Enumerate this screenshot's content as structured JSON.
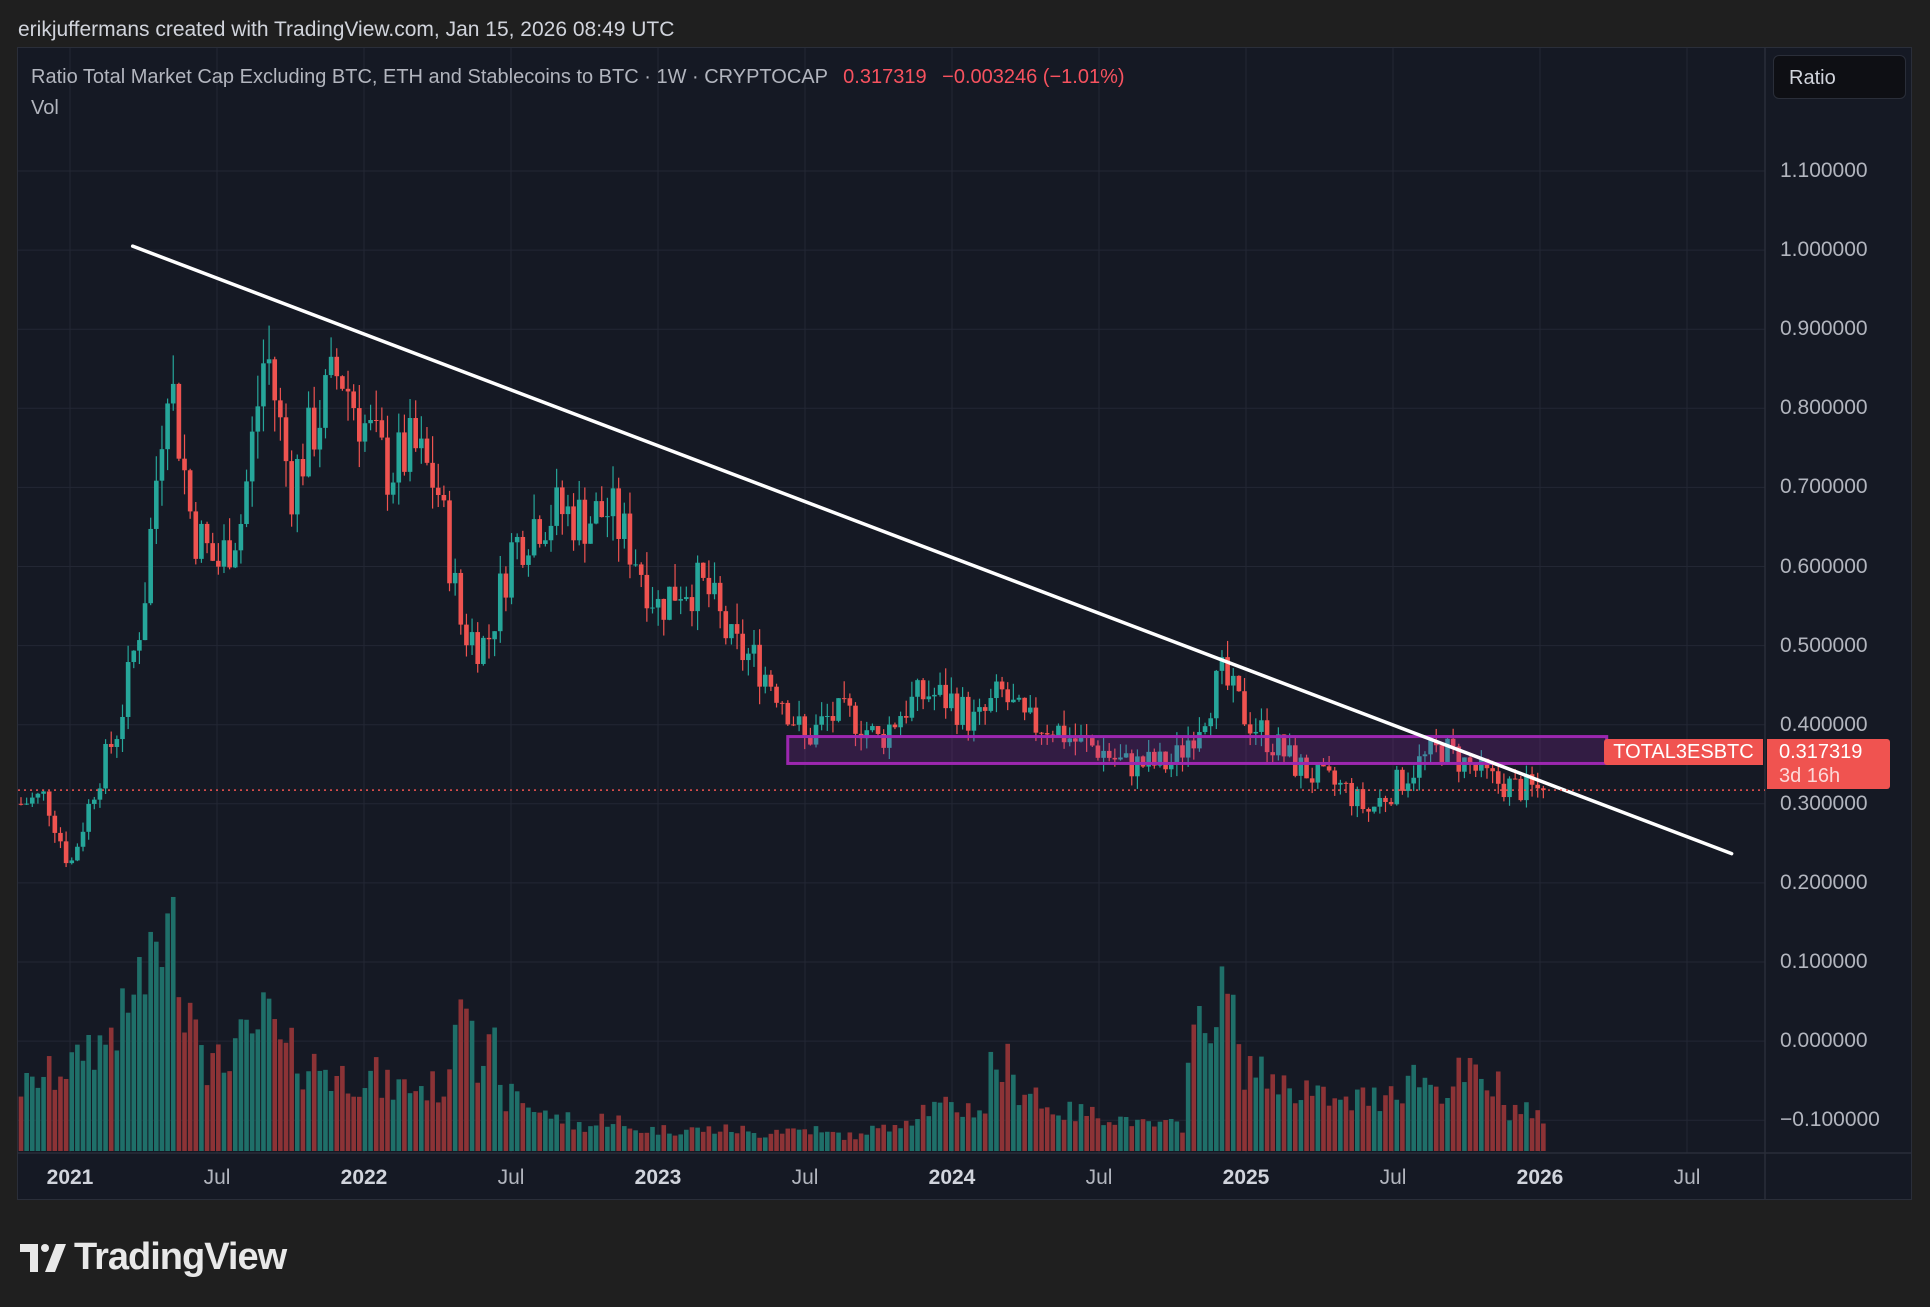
{
  "credit": "erikjuffermans created with TradingView.com, Jan 15, 2026 08:49 UTC",
  "legend": {
    "title": "Ratio Total Market Cap Excluding BTC, ETH and Stablecoins to BTC · 1W · CRYPTOCAP",
    "price": "0.317319",
    "change": "−0.003246 (−1.01%)",
    "volume_label": "Vol"
  },
  "scale_button": "Ratio",
  "symbol_tag": "TOTAL3ESBTC",
  "price_tag": {
    "price": "0.317319",
    "countdown": "3d 16h"
  },
  "logo_text": "TradingView",
  "colors": {
    "up": "#26a69a",
    "down": "#ef5350",
    "trendline": "#ffffff",
    "zone": "#9c27b0",
    "background": "#151924"
  },
  "chart_data": {
    "type": "candlestick",
    "interval": "1W",
    "y_ticks": [
      "1.100000",
      "1.000000",
      "0.900000",
      "0.800000",
      "0.700000",
      "0.600000",
      "0.500000",
      "0.400000",
      "0.300000",
      "0.200000",
      "0.100000",
      "0.000000",
      "−0.100000"
    ],
    "ylim": [
      -0.1,
      1.1
    ],
    "x_ticks": [
      {
        "label": "2021",
        "date": "2021-01",
        "year": true
      },
      {
        "label": "Jul",
        "date": "2021-07",
        "year": false
      },
      {
        "label": "2022",
        "date": "2022-01",
        "year": true
      },
      {
        "label": "Jul",
        "date": "2022-07",
        "year": false
      },
      {
        "label": "2023",
        "date": "2023-01",
        "year": true
      },
      {
        "label": "Jul",
        "date": "2023-07",
        "year": false
      },
      {
        "label": "2024",
        "date": "2024-01",
        "year": true
      },
      {
        "label": "Jul",
        "date": "2024-07",
        "year": false
      },
      {
        "label": "2025",
        "date": "2025-01",
        "year": true
      },
      {
        "label": "Jul",
        "date": "2025-07",
        "year": false
      },
      {
        "label": "2026",
        "date": "2026-01",
        "year": true
      },
      {
        "label": "Jul",
        "date": "2026-07",
        "year": false
      }
    ],
    "grid": true,
    "monthly_close_approx": [
      [
        "2020-11",
        0.3
      ],
      [
        "2020-12",
        0.31
      ],
      [
        "2021-01",
        0.22
      ],
      [
        "2021-02",
        0.32
      ],
      [
        "2021-03",
        0.4
      ],
      [
        "2021-04",
        0.55
      ],
      [
        "2021-05",
        0.86
      ],
      [
        "2021-06",
        0.65
      ],
      [
        "2021-07",
        0.6
      ],
      [
        "2021-08",
        0.66
      ],
      [
        "2021-09",
        0.88
      ],
      [
        "2021-10",
        0.7
      ],
      [
        "2021-11",
        0.78
      ],
      [
        "2021-12",
        0.85
      ],
      [
        "2022-01",
        0.78
      ],
      [
        "2022-02",
        0.72
      ],
      [
        "2022-03",
        0.75
      ],
      [
        "2022-04",
        0.7
      ],
      [
        "2022-05",
        0.52
      ],
      [
        "2022-06",
        0.5
      ],
      [
        "2022-07",
        0.62
      ],
      [
        "2022-08",
        0.66
      ],
      [
        "2022-09",
        0.67
      ],
      [
        "2022-10",
        0.66
      ],
      [
        "2022-11",
        0.67
      ],
      [
        "2022-12",
        0.62
      ],
      [
        "2023-01",
        0.55
      ],
      [
        "2023-02",
        0.58
      ],
      [
        "2023-03",
        0.57
      ],
      [
        "2023-04",
        0.5
      ],
      [
        "2023-05",
        0.48
      ],
      [
        "2023-06",
        0.44
      ],
      [
        "2023-07",
        0.38
      ],
      [
        "2023-08",
        0.41
      ],
      [
        "2023-09",
        0.41
      ],
      [
        "2023-10",
        0.38
      ],
      [
        "2023-11",
        0.42
      ],
      [
        "2023-12",
        0.44
      ],
      [
        "2024-01",
        0.43
      ],
      [
        "2024-02",
        0.4
      ],
      [
        "2024-03",
        0.44
      ],
      [
        "2024-04",
        0.4
      ],
      [
        "2024-05",
        0.4
      ],
      [
        "2024-06",
        0.38
      ],
      [
        "2024-07",
        0.37
      ],
      [
        "2024-08",
        0.35
      ],
      [
        "2024-09",
        0.35
      ],
      [
        "2024-10",
        0.35
      ],
      [
        "2024-11",
        0.4
      ],
      [
        "2024-12",
        0.46
      ],
      [
        "2025-01",
        0.41
      ],
      [
        "2025-02",
        0.38
      ],
      [
        "2025-03",
        0.35
      ],
      [
        "2025-04",
        0.33
      ],
      [
        "2025-05",
        0.32
      ],
      [
        "2025-06",
        0.29
      ],
      [
        "2025-07",
        0.32
      ],
      [
        "2025-08",
        0.35
      ],
      [
        "2025-09",
        0.37
      ],
      [
        "2025-10",
        0.35
      ],
      [
        "2025-11",
        0.33
      ],
      [
        "2025-12",
        0.32
      ],
      [
        "2026-01",
        0.317319
      ]
    ],
    "monthly_volume_relative": [
      0.3,
      0.35,
      0.4,
      0.5,
      0.6,
      0.8,
      1.0,
      0.7,
      0.4,
      0.5,
      0.6,
      0.45,
      0.4,
      0.35,
      0.35,
      0.3,
      0.3,
      0.3,
      0.8,
      0.45,
      0.25,
      0.2,
      0.15,
      0.12,
      0.15,
      0.1,
      0.1,
      0.1,
      0.1,
      0.1,
      0.08,
      0.1,
      0.1,
      0.08,
      0.07,
      0.1,
      0.15,
      0.2,
      0.2,
      0.2,
      0.4,
      0.3,
      0.2,
      0.18,
      0.17,
      0.15,
      0.12,
      0.12,
      0.55,
      0.7,
      0.4,
      0.35,
      0.3,
      0.25,
      0.22,
      0.25,
      0.3,
      0.35,
      0.3,
      0.35,
      0.3,
      0.2,
      0.15
    ],
    "last_price": 0.317319,
    "drawings": {
      "trendline": {
        "from": [
          "2021-03-18",
          1.005
        ],
        "to": [
          "2026-08-26",
          0.237
        ]
      },
      "zone": {
        "from": "2023-06-10",
        "to": "2026-03-23",
        "top": 0.385,
        "bottom": 0.351
      }
    }
  }
}
